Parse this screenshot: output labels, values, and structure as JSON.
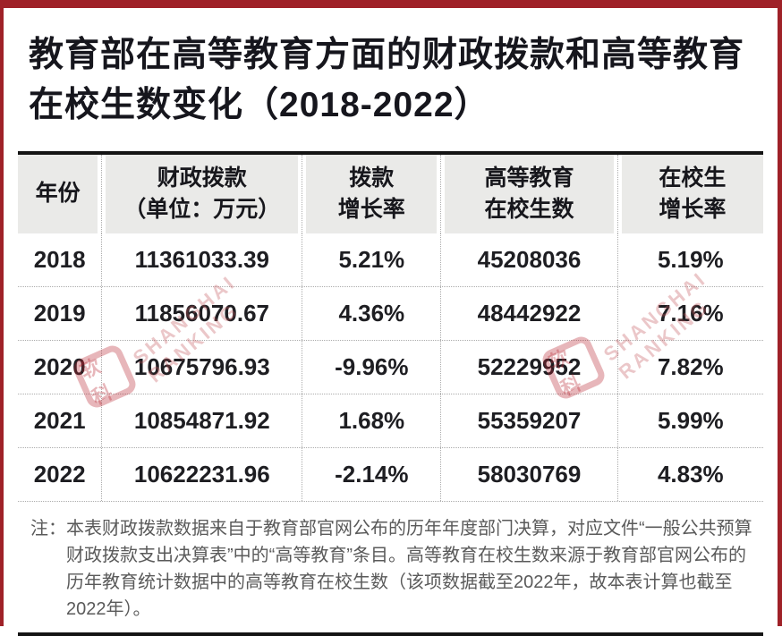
{
  "title": {
    "line1": "教育部在高等教育方面的财政拨款和高等教育",
    "line2": "在校生数变化（2018-2022）"
  },
  "table": {
    "header_lines": [
      [
        "年份"
      ],
      [
        "财政拨款",
        "（单位：万元）"
      ],
      [
        "拨款",
        "增长率"
      ],
      [
        "高等教育",
        "在校生数"
      ],
      [
        "在校生",
        "增长率"
      ]
    ]
  },
  "note": {
    "label": "注：",
    "text": "本表财政拨款数据来自于教育部官网公布的历年年度部门决算，对应文件“一般公共预算财政拨款支出决算表”中的“高等教育”条目。高等教育在校生数来源于教育部官网公布的历年教育统计数据中的高等教育在校生数（该项数据截至2022年，故本表计算也截至2022年）。"
  },
  "watermark": {
    "logo_text": "软科",
    "line1": "SHANGHAI",
    "line2": "RANKING"
  },
  "colors": {
    "frame_red": "#9f2128",
    "title_dark": "#16161d",
    "header_bg": "#eaeae8",
    "rule_black": "#141414",
    "note_gray": "#5a5a5a",
    "watermark_red": "#ba2a34"
  },
  "chart_data": {
    "type": "table",
    "title": "教育部在高等教育方面的财政拨款和高等教育在校生数变化（2018-2022）",
    "columns": [
      "年份",
      "财政拨款（单位：万元）",
      "拨款增长率",
      "高等教育在校生数",
      "在校生增长率"
    ],
    "rows": [
      [
        "2018",
        "11361033.39",
        "5.21%",
        "45208036",
        "5.19%"
      ],
      [
        "2019",
        "11856070.67",
        "4.36%",
        "48442922",
        "7.16%"
      ],
      [
        "2020",
        "10675796.93",
        "-9.96%",
        "52229952",
        "7.82%"
      ],
      [
        "2021",
        "10854871.92",
        "1.68%",
        "55359207",
        "5.99%"
      ],
      [
        "2022",
        "10622231.96",
        "-2.14%",
        "58030769",
        "4.83%"
      ]
    ],
    "note": "注：本表财政拨款数据来自于教育部官网公布的历年年度部门决算，对应文件“一般公共预算财政拨款支出决算表”中的“高等教育”条目。高等教育在校生数来源于教育部官网公布的历年教育统计数据中的高等教育在校生数（该项数据截至2022年，故本表计算也截至2022年）。"
  }
}
